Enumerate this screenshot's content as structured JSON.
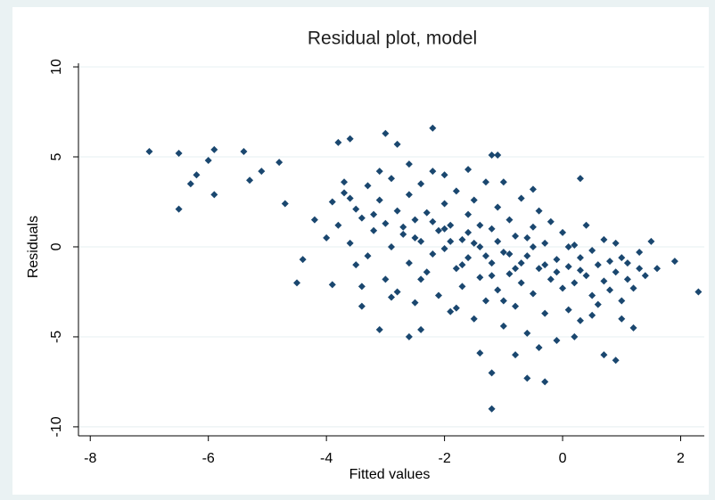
{
  "chart_data": {
    "type": "scatter",
    "title": "Residual plot, model",
    "x_label": "Fitted values",
    "y_label": "Residuals",
    "color": "#1a476f",
    "grid": true,
    "xlim": [
      -8.2,
      2.4
    ],
    "ylim": [
      -10.5,
      10.2
    ],
    "xticks": [
      -8,
      -6,
      -4,
      -2,
      0,
      2
    ],
    "yticks": [
      -10,
      -5,
      0,
      5,
      10
    ],
    "x": [
      -7,
      -6.5,
      -6.5,
      -6.3,
      -6.2,
      -6,
      -5.9,
      -5.9,
      -5.4,
      -5.3,
      -5.1,
      -4.8,
      -4.7,
      -4.5,
      -4.4,
      -3.8,
      -3.6,
      -3.0,
      -2.8,
      -2.2,
      -1.2,
      -1.1,
      0.3,
      1.5,
      2.3,
      -1.2,
      -1.2,
      -0.6,
      -0.3,
      -2.4,
      -2.6,
      -3.1,
      0.9,
      0.7,
      -3.4,
      1.2,
      1.6,
      1.9,
      -4.2,
      -4.0,
      -3.9,
      -3.9,
      -3.8,
      -3.7,
      -3.6,
      -3.5,
      -3.5,
      -3.4,
      -3.3,
      -3.3,
      -3.2,
      -3.1,
      -3.0,
      -3.0,
      -2.9,
      -2.9,
      -2.8,
      -2.8,
      -2.7,
      -2.6,
      -2.6,
      -2.5,
      -2.5,
      -2.4,
      -2.4,
      -2.3,
      -2.3,
      -2.2,
      -2.2,
      -2.1,
      -2.1,
      -2.0,
      -2.0,
      -1.9,
      -1.9,
      -1.8,
      -1.8,
      -1.7,
      -1.7,
      -1.6,
      -1.6,
      -1.5,
      -1.5,
      -1.4,
      -1.4,
      -1.3,
      -1.3,
      -1.2,
      -1.2,
      -1.1,
      -1.1,
      -1.0,
      -1.0,
      -0.9,
      -0.9,
      -0.8,
      -0.8,
      -0.7,
      -0.7,
      -0.6,
      -0.6,
      -0.5,
      -0.5,
      -0.4,
      -0.4,
      -0.3,
      -0.3,
      -0.2,
      -0.2,
      -0.1,
      -0.1,
      0.0,
      0.0,
      0.1,
      0.1,
      0.2,
      0.2,
      0.3,
      0.3,
      0.4,
      0.4,
      0.5,
      0.5,
      0.6,
      0.6,
      0.7,
      0.7,
      0.8,
      0.8,
      0.9,
      0.9,
      1.0,
      1.0,
      1.1,
      1.1,
      1.2,
      1.3,
      1.3,
      1.4,
      1.0,
      -3.6,
      -3.2,
      -2.7,
      -2.2,
      -1.9,
      -1.6,
      -1.4,
      -1.3,
      -1.1,
      -0.9,
      -0.7,
      -0.5,
      -0.3,
      -0.1,
      0.1,
      0.3,
      -2.5,
      -2.0,
      -1.7,
      -1.5,
      -1.2,
      -0.8,
      -0.6,
      -2.4,
      -2.9,
      -3.4,
      -1.8,
      -1.0,
      0.5,
      0.2,
      -0.4,
      -1.4,
      -0.8,
      -2.0,
      -1.6,
      -2.6,
      -3.1,
      -1.0,
      -0.5,
      -3.7
    ],
    "values": [
      5.3,
      5.2,
      2.1,
      3.5,
      4.0,
      4.8,
      5.4,
      2.9,
      5.3,
      3.7,
      4.2,
      4.7,
      2.4,
      -2.0,
      -0.7,
      5.8,
      6.0,
      6.3,
      5.7,
      6.6,
      5.1,
      5.1,
      3.8,
      0.3,
      -2.5,
      -9.0,
      -7.0,
      -7.3,
      -7.5,
      -4.6,
      -5.0,
      -4.6,
      -6.3,
      -6.0,
      -3.3,
      -4.5,
      -1.2,
      -0.8,
      1.5,
      0.5,
      -2.1,
      2.5,
      1.2,
      3.0,
      0.2,
      2.1,
      -1.0,
      1.6,
      3.4,
      -0.5,
      0.9,
      2.6,
      -1.8,
      1.3,
      0.0,
      3.8,
      2.0,
      -2.5,
      0.7,
      -0.9,
      2.9,
      1.5,
      -3.1,
      0.3,
      3.5,
      -1.4,
      1.9,
      -0.4,
      4.2,
      0.9,
      -2.7,
      2.4,
      -0.1,
      -3.6,
      1.2,
      -1.2,
      3.1,
      0.4,
      -2.2,
      1.8,
      -0.6,
      -4.0,
      2.6,
      0.0,
      -1.7,
      3.6,
      -3.0,
      1.0,
      -0.9,
      -2.4,
      2.2,
      -0.3,
      -4.4,
      1.5,
      -1.5,
      -3.3,
      0.6,
      -2.0,
      2.7,
      -0.5,
      -4.8,
      1.1,
      -2.6,
      -1.2,
      2.0,
      -3.7,
      0.2,
      -1.8,
      1.4,
      -0.7,
      -5.2,
      -2.3,
      0.8,
      -1.1,
      -3.5,
      0.1,
      -2.0,
      -4.1,
      -0.6,
      1.2,
      -1.6,
      -2.7,
      -0.2,
      -1.0,
      -3.2,
      0.4,
      -1.9,
      -0.8,
      -2.4,
      -1.4,
      0.2,
      -3.0,
      -0.6,
      -1.8,
      -0.9,
      -2.3,
      -1.2,
      -0.3,
      -1.6,
      -4.0,
      2.7,
      1.8,
      1.1,
      1.4,
      0.3,
      0.8,
      1.2,
      -0.5,
      0.3,
      -0.4,
      -0.9,
      0.0,
      -1.0,
      -1.4,
      0.0,
      -1.3,
      0.5,
      1.0,
      -1.0,
      0.2,
      -1.6,
      -1.2,
      0.5,
      -1.8,
      -2.8,
      -2.2,
      -3.4,
      -3.0,
      -3.8,
      -5.0,
      -5.6,
      -5.9,
      -6.0,
      4.0,
      4.3,
      4.6,
      4.2,
      3.6,
      3.2,
      3.6
    ]
  }
}
